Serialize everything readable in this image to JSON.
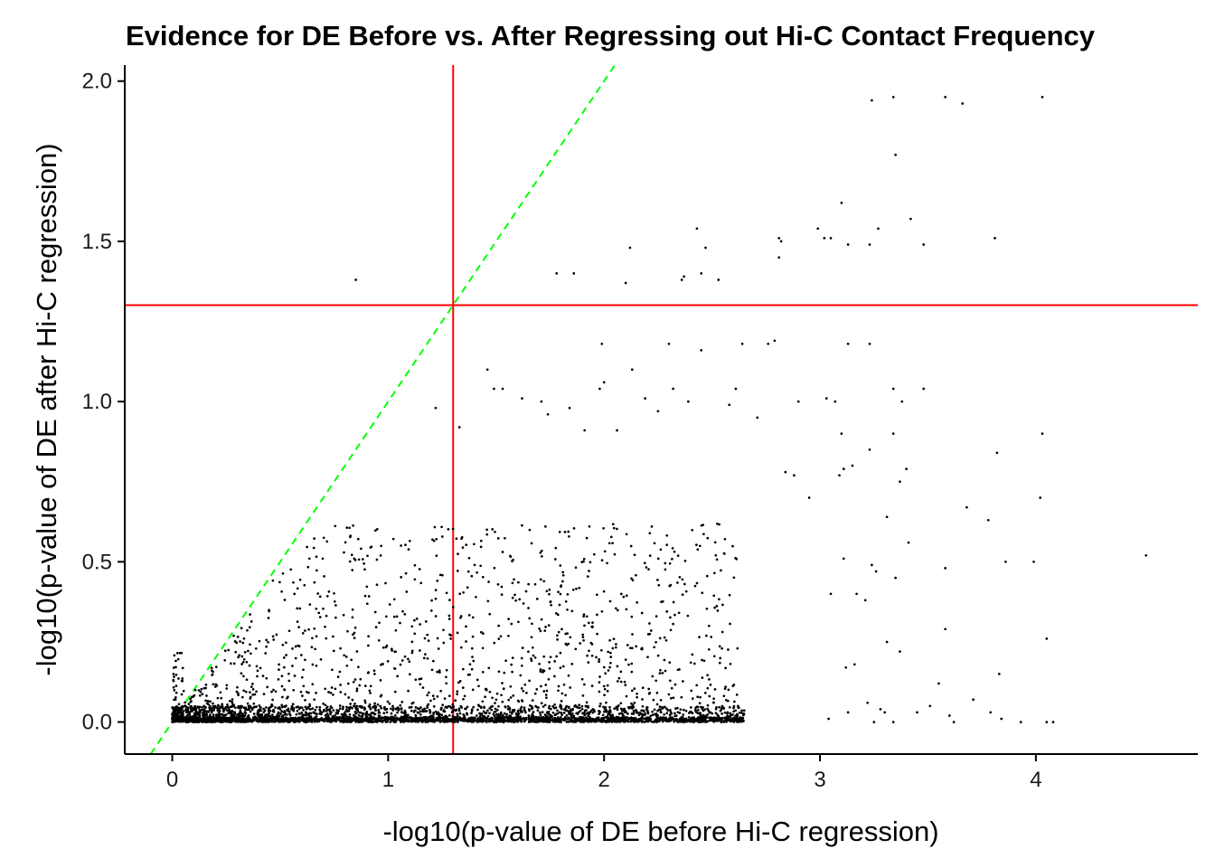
{
  "chart_data": {
    "type": "scatter",
    "title": "Evidence for DE Before vs. After Regressing out Hi-C Contact Frequency",
    "xlabel": "-log10(p-value of DE before Hi-C regression)",
    "ylabel": "-log10(p-value of DE after Hi-C regression)",
    "xlim": [
      -0.22,
      4.75
    ],
    "ylim": [
      -0.1,
      2.05
    ],
    "x_ticks": [
      0,
      1,
      2,
      3,
      4
    ],
    "x_tick_labels": [
      "0",
      "1",
      "2",
      "3",
      "4"
    ],
    "y_ticks": [
      0.0,
      0.5,
      1.0,
      1.5,
      2.0
    ],
    "y_tick_labels": [
      "0.0",
      "0.5",
      "1.0",
      "1.5",
      "2.0"
    ],
    "grid": false,
    "point_color": "#000000",
    "reference_lines": [
      {
        "kind": "vertical",
        "x": 1.301,
        "color": "#ff0000",
        "style": "solid"
      },
      {
        "kind": "horizontal",
        "y": 1.301,
        "color": "#ff0000",
        "style": "solid"
      },
      {
        "kind": "diagonal",
        "slope": 1,
        "intercept": 0,
        "color": "#00ff00",
        "style": "dashed"
      }
    ],
    "points": [
      [
        0.85,
        1.38
      ],
      [
        1.78,
        1.4
      ],
      [
        1.86,
        1.4
      ],
      [
        2.12,
        1.48
      ],
      [
        2.1,
        1.37
      ],
      [
        2.36,
        1.38
      ],
      [
        2.37,
        1.39
      ],
      [
        2.43,
        1.54
      ],
      [
        2.45,
        1.4
      ],
      [
        2.47,
        1.48
      ],
      [
        2.53,
        1.38
      ],
      [
        2.81,
        1.51
      ],
      [
        2.81,
        1.45
      ],
      [
        2.82,
        1.5
      ],
      [
        2.99,
        1.54
      ],
      [
        3.02,
        1.51
      ],
      [
        3.05,
        1.51
      ],
      [
        3.1,
        1.62
      ],
      [
        3.13,
        1.49
      ],
      [
        3.23,
        1.49
      ],
      [
        3.27,
        1.54
      ],
      [
        3.24,
        1.94
      ],
      [
        3.34,
        1.95
      ],
      [
        3.35,
        1.77
      ],
      [
        3.42,
        1.57
      ],
      [
        3.48,
        1.49
      ],
      [
        3.58,
        1.95
      ],
      [
        3.66,
        1.93
      ],
      [
        3.81,
        1.51
      ],
      [
        4.03,
        1.95
      ],
      [
        1.22,
        0.98
      ],
      [
        1.33,
        0.92
      ],
      [
        1.46,
        1.1
      ],
      [
        1.49,
        1.04
      ],
      [
        1.53,
        1.04
      ],
      [
        1.62,
        1.01
      ],
      [
        1.71,
        1.0
      ],
      [
        1.74,
        0.96
      ],
      [
        1.84,
        0.98
      ],
      [
        1.91,
        0.91
      ],
      [
        1.99,
        1.18
      ],
      [
        1.98,
        1.04
      ],
      [
        2.0,
        1.06
      ],
      [
        2.06,
        0.91
      ],
      [
        2.13,
        1.1
      ],
      [
        2.19,
        1.01
      ],
      [
        2.25,
        0.97
      ],
      [
        2.3,
        1.18
      ],
      [
        2.32,
        1.04
      ],
      [
        2.39,
        1.0
      ],
      [
        2.45,
        1.16
      ],
      [
        2.58,
        0.99
      ],
      [
        2.61,
        1.04
      ],
      [
        2.64,
        1.18
      ],
      [
        2.71,
        0.95
      ],
      [
        2.76,
        1.18
      ],
      [
        2.79,
        1.19
      ],
      [
        2.9,
        1.0
      ],
      [
        3.03,
        1.01
      ],
      [
        3.07,
        1.0
      ],
      [
        3.13,
        1.18
      ],
      [
        3.23,
        1.18
      ],
      [
        3.34,
        1.04
      ],
      [
        3.38,
        1.0
      ],
      [
        3.48,
        1.04
      ],
      [
        3.34,
        0.9
      ],
      [
        3.1,
        0.9
      ],
      [
        3.23,
        0.85
      ],
      [
        4.03,
        0.9
      ],
      [
        4.02,
        0.7
      ],
      [
        3.82,
        0.84
      ],
      [
        3.4,
        0.79
      ],
      [
        3.37,
        0.75
      ],
      [
        3.15,
        0.8
      ],
      [
        3.09,
        0.77
      ],
      [
        3.11,
        0.79
      ],
      [
        2.88,
        0.77
      ],
      [
        2.84,
        0.78
      ],
      [
        2.95,
        0.7
      ],
      [
        3.68,
        0.67
      ],
      [
        3.78,
        0.63
      ],
      [
        3.31,
        0.64
      ],
      [
        4.51,
        0.52
      ],
      [
        4.05,
        0.26
      ],
      [
        3.99,
        0.5
      ],
      [
        3.86,
        0.5
      ],
      [
        3.58,
        0.48
      ],
      [
        3.58,
        0.29
      ],
      [
        3.55,
        0.12
      ],
      [
        3.71,
        0.07
      ],
      [
        3.79,
        0.03
      ],
      [
        3.83,
        0.15
      ],
      [
        3.84,
        0.01
      ],
      [
        3.41,
        0.56
      ],
      [
        3.35,
        0.45
      ],
      [
        3.26,
        0.47
      ],
      [
        3.24,
        0.49
      ],
      [
        3.11,
        0.51
      ],
      [
        3.05,
        0.4
      ],
      [
        3.17,
        0.4
      ],
      [
        3.21,
        0.38
      ],
      [
        3.31,
        0.25
      ],
      [
        3.37,
        0.22
      ],
      [
        3.12,
        0.17
      ],
      [
        3.16,
        0.18
      ],
      [
        3.22,
        0.06
      ],
      [
        3.28,
        0.04
      ],
      [
        3.3,
        0.03
      ],
      [
        3.04,
        0.01
      ],
      [
        3.13,
        0.03
      ],
      [
        3.25,
        0.0
      ],
      [
        3.34,
        0.0
      ],
      [
        3.45,
        0.03
      ],
      [
        3.51,
        0.05
      ],
      [
        3.6,
        0.02
      ],
      [
        3.62,
        0.0
      ],
      [
        3.93,
        0.0
      ],
      [
        4.05,
        0.0
      ],
      [
        4.08,
        0.0
      ]
    ]
  }
}
